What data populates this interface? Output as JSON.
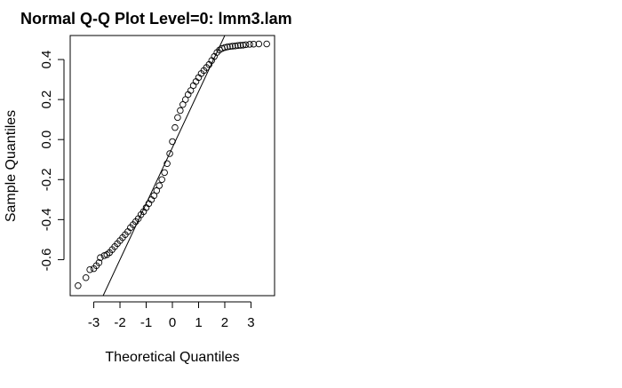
{
  "chart_data": {
    "type": "scatter",
    "title": "Normal Q-Q Plot Level=0: lmm3.lam",
    "xlabel": "Theoretical Quantiles",
    "ylabel": "Sample Quantiles",
    "xlim": [
      -3.9,
      3.9
    ],
    "ylim": [
      -0.78,
      0.52
    ],
    "x_ticks": [
      -3,
      -2,
      -1,
      0,
      1,
      2,
      3
    ],
    "x_tick_labels": [
      "-3",
      "-2",
      "-1",
      "0",
      "1",
      "2",
      "3"
    ],
    "y_ticks": [
      -0.6,
      -0.4,
      -0.2,
      0.0,
      0.2,
      0.4
    ],
    "y_tick_labels": [
      "-0.6",
      "-0.4",
      "-0.2",
      "0.0",
      "0.2",
      "0.4"
    ],
    "grid": false,
    "reference_line": {
      "intercept": -0.04,
      "slope": 0.28
    },
    "points": [
      {
        "x": -3.6,
        "y": -0.73
      },
      {
        "x": -3.3,
        "y": -0.69
      },
      {
        "x": -3.15,
        "y": -0.65
      },
      {
        "x": -3.0,
        "y": -0.645
      },
      {
        "x": -2.9,
        "y": -0.63
      },
      {
        "x": -2.8,
        "y": -0.615
      },
      {
        "x": -2.75,
        "y": -0.59
      },
      {
        "x": -2.6,
        "y": -0.58
      },
      {
        "x": -2.5,
        "y": -0.575
      },
      {
        "x": -2.4,
        "y": -0.565
      },
      {
        "x": -2.3,
        "y": -0.55
      },
      {
        "x": -2.2,
        "y": -0.535
      },
      {
        "x": -2.1,
        "y": -0.52
      },
      {
        "x": -2.0,
        "y": -0.505
      },
      {
        "x": -1.9,
        "y": -0.49
      },
      {
        "x": -1.8,
        "y": -0.475
      },
      {
        "x": -1.7,
        "y": -0.46
      },
      {
        "x": -1.6,
        "y": -0.44
      },
      {
        "x": -1.5,
        "y": -0.425
      },
      {
        "x": -1.4,
        "y": -0.41
      },
      {
        "x": -1.3,
        "y": -0.395
      },
      {
        "x": -1.2,
        "y": -0.375
      },
      {
        "x": -1.1,
        "y": -0.36
      },
      {
        "x": -1.0,
        "y": -0.34
      },
      {
        "x": -0.9,
        "y": -0.32
      },
      {
        "x": -0.8,
        "y": -0.3
      },
      {
        "x": -0.7,
        "y": -0.28
      },
      {
        "x": -0.6,
        "y": -0.255
      },
      {
        "x": -0.5,
        "y": -0.23
      },
      {
        "x": -0.4,
        "y": -0.2
      },
      {
        "x": -0.3,
        "y": -0.165
      },
      {
        "x": -0.2,
        "y": -0.12
      },
      {
        "x": -0.1,
        "y": -0.07
      },
      {
        "x": 0.0,
        "y": -0.01
      },
      {
        "x": 0.1,
        "y": 0.06
      },
      {
        "x": 0.2,
        "y": 0.11
      },
      {
        "x": 0.3,
        "y": 0.145
      },
      {
        "x": 0.4,
        "y": 0.175
      },
      {
        "x": 0.5,
        "y": 0.2
      },
      {
        "x": 0.6,
        "y": 0.225
      },
      {
        "x": 0.7,
        "y": 0.245
      },
      {
        "x": 0.8,
        "y": 0.27
      },
      {
        "x": 0.9,
        "y": 0.29
      },
      {
        "x": 1.0,
        "y": 0.31
      },
      {
        "x": 1.1,
        "y": 0.33
      },
      {
        "x": 1.2,
        "y": 0.345
      },
      {
        "x": 1.3,
        "y": 0.36
      },
      {
        "x": 1.4,
        "y": 0.375
      },
      {
        "x": 1.5,
        "y": 0.395
      },
      {
        "x": 1.6,
        "y": 0.415
      },
      {
        "x": 1.7,
        "y": 0.435
      },
      {
        "x": 1.8,
        "y": 0.448
      },
      {
        "x": 1.9,
        "y": 0.455
      },
      {
        "x": 2.0,
        "y": 0.46
      },
      {
        "x": 2.1,
        "y": 0.463
      },
      {
        "x": 2.2,
        "y": 0.465
      },
      {
        "x": 2.3,
        "y": 0.467
      },
      {
        "x": 2.4,
        "y": 0.468
      },
      {
        "x": 2.5,
        "y": 0.47
      },
      {
        "x": 2.6,
        "y": 0.471
      },
      {
        "x": 2.7,
        "y": 0.472
      },
      {
        "x": 2.8,
        "y": 0.474
      },
      {
        "x": 2.95,
        "y": 0.476
      },
      {
        "x": 3.1,
        "y": 0.477
      },
      {
        "x": 3.3,
        "y": 0.478
      },
      {
        "x": 3.6,
        "y": 0.478
      }
    ]
  }
}
